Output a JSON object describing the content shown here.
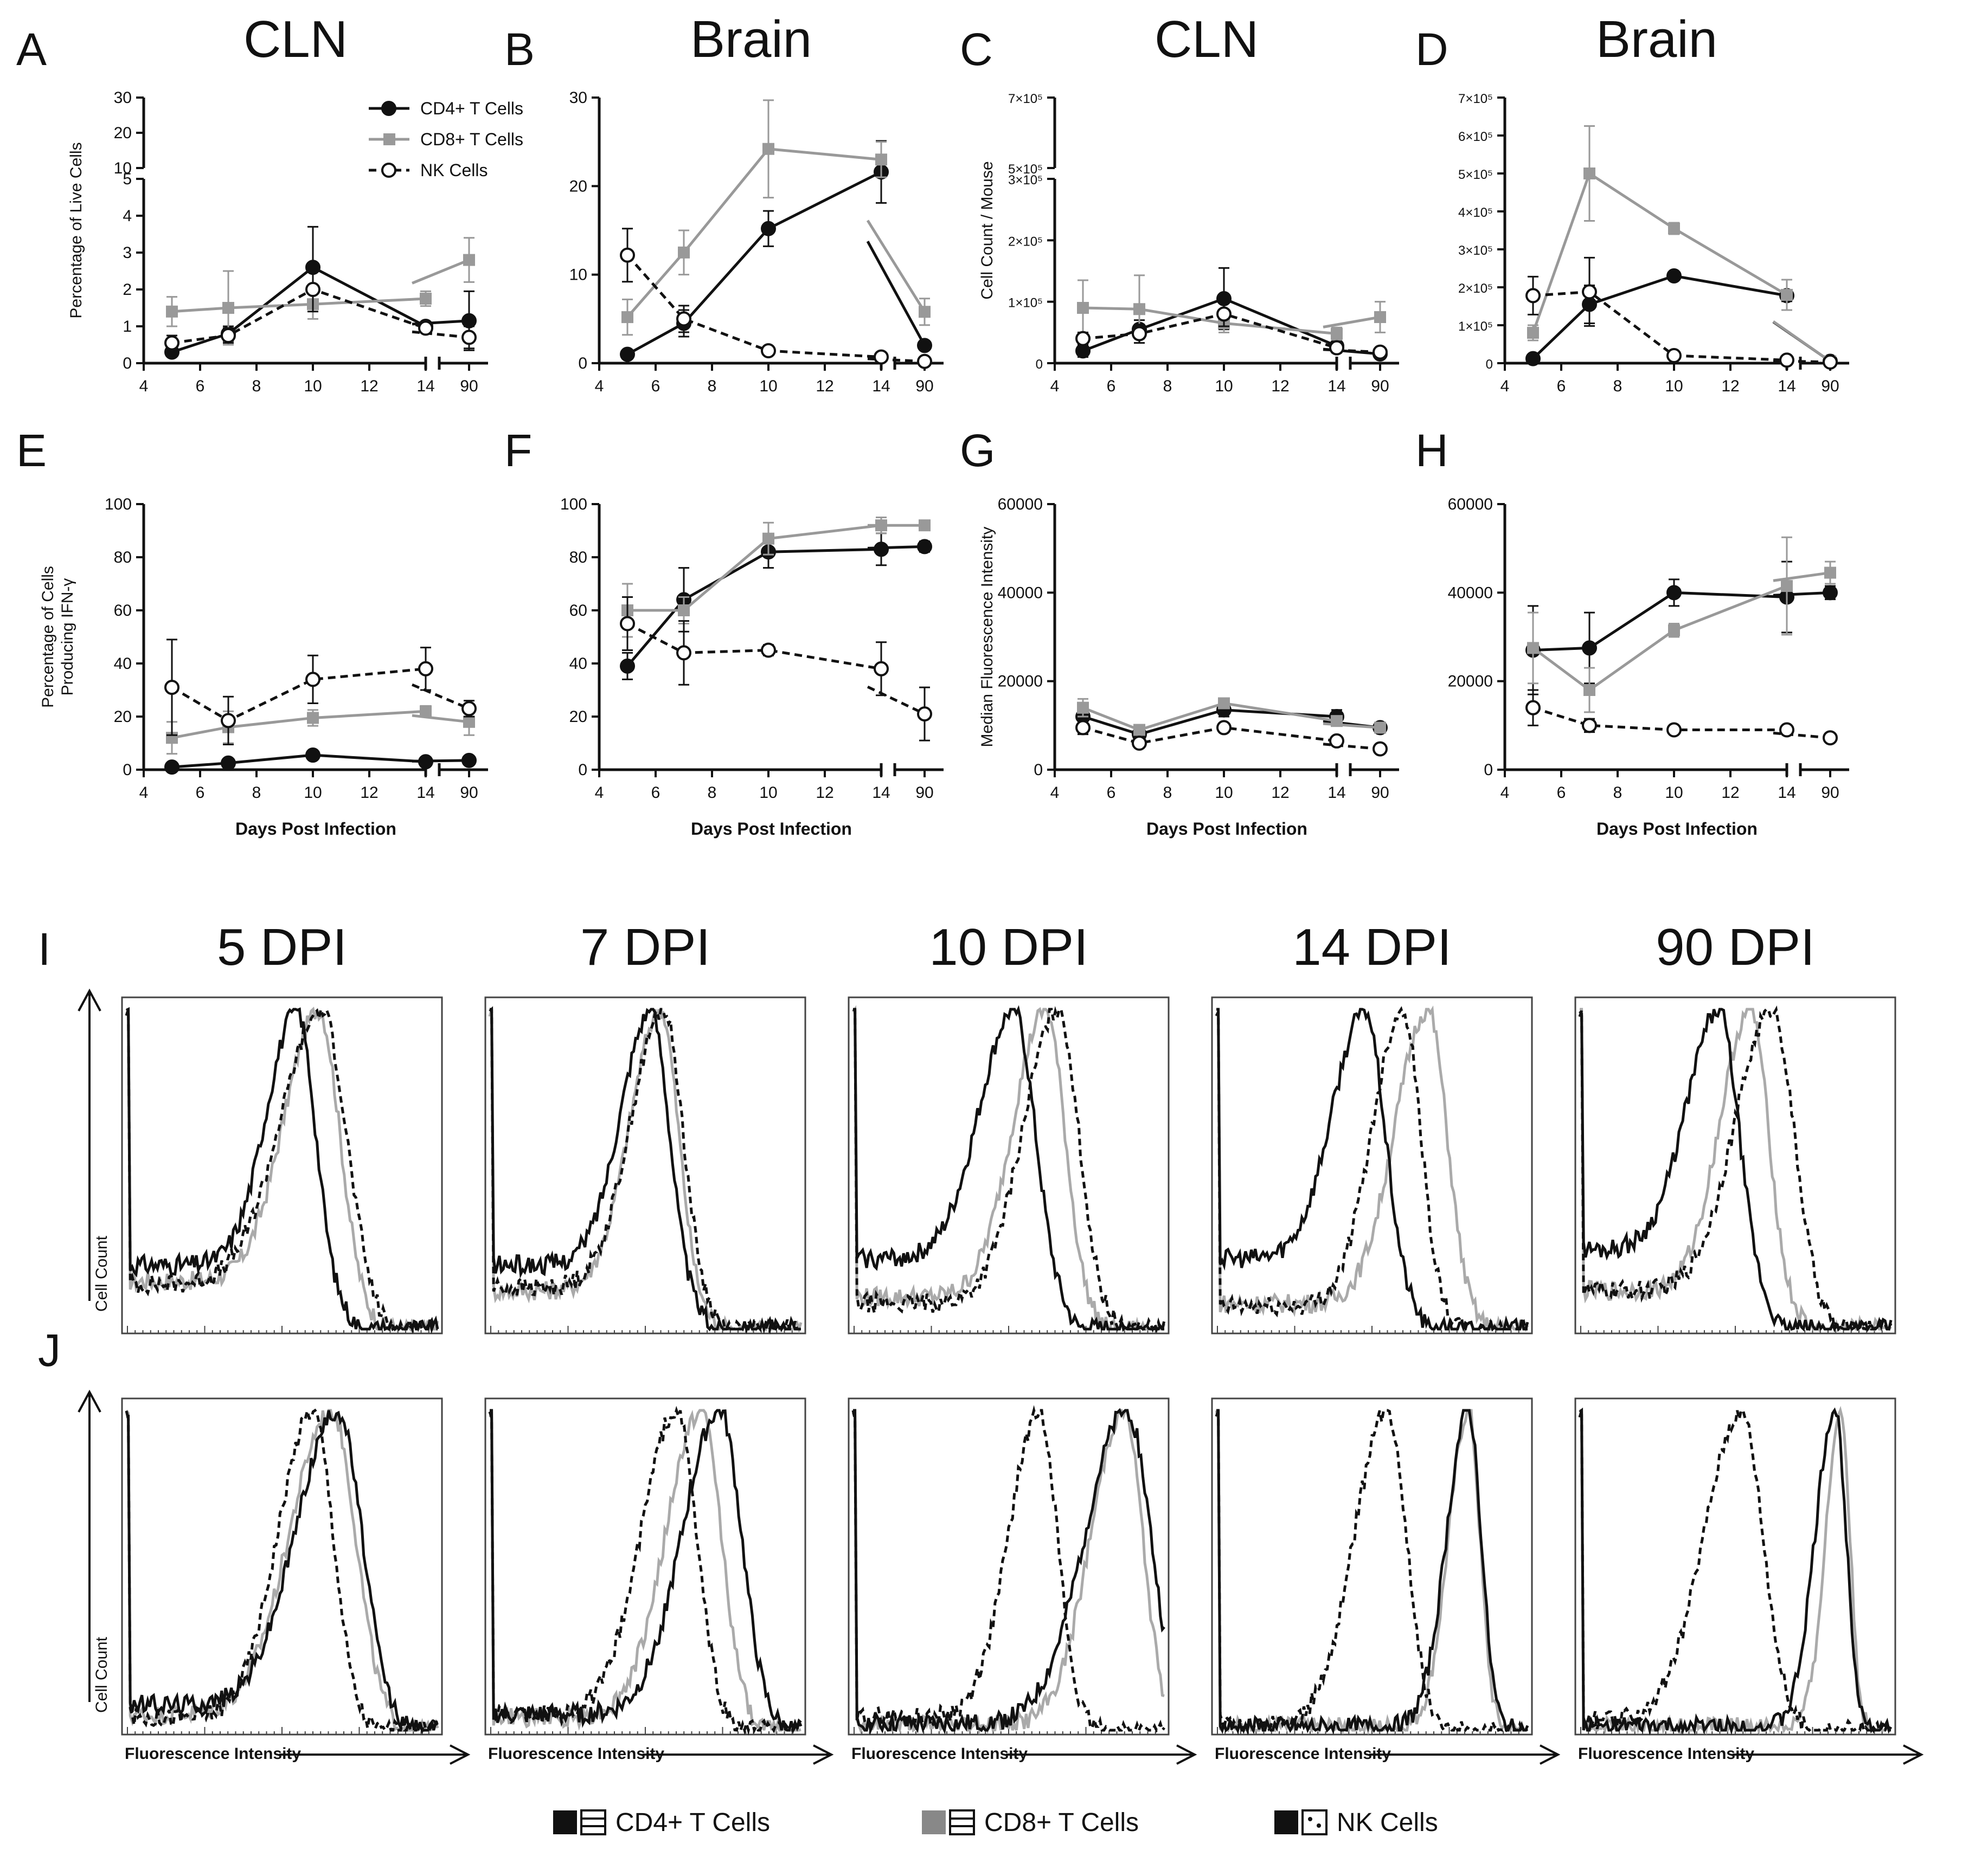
{
  "series_names": {
    "cd4": "CD4+ T Cells",
    "cd8": "CD8+ T Cells",
    "nk": "NK Cells"
  },
  "colors": {
    "cd4": "#111111",
    "cd8": "#999999",
    "nk": "#111111",
    "axis": "#111111"
  },
  "chart_data": [
    {
      "id": "A",
      "type": "line",
      "title": "CLN",
      "ylabel": "Percentage of Live Cells",
      "xlabel": "",
      "x": [
        5,
        7,
        10,
        14
      ],
      "late_x": 90,
      "xticks": [
        4,
        6,
        8,
        10,
        12,
        14
      ],
      "ylim": [
        0,
        30
      ],
      "yticks": [
        "0",
        "1",
        "2",
        "3",
        "4",
        "5",
        "10",
        "20",
        "30"
      ],
      "y_axis_break": "5 to 10",
      "series": [
        {
          "key": "cd4",
          "name": "CD4+ T Cells",
          "values": [
            0.3,
            0.8,
            2.6,
            1.0
          ],
          "late": 1.15,
          "err": [
            0.1,
            0.2,
            1.1,
            0.1
          ],
          "late_err": 0.8
        },
        {
          "key": "cd8",
          "name": "CD8+ T Cells",
          "values": [
            1.4,
            1.5,
            1.6,
            1.75
          ],
          "late": 2.8,
          "err": [
            0.4,
            1.0,
            0.4,
            0.2
          ],
          "late_err": 0.6
        },
        {
          "key": "nk",
          "name": "NK Cells",
          "values": [
            0.55,
            0.75,
            2.0,
            0.95
          ],
          "late": 0.7,
          "err": [
            0.2,
            0.2,
            0.6,
            0.1
          ],
          "late_err": 0.3
        }
      ]
    },
    {
      "id": "B",
      "type": "line",
      "title": "Brain",
      "ylabel": "",
      "xlabel": "",
      "x": [
        5,
        7,
        10,
        14
      ],
      "late_x": 90,
      "xticks": [
        4,
        6,
        8,
        10,
        12,
        14
      ],
      "ylim": [
        0,
        30
      ],
      "yticks": [
        "0",
        "10",
        "20",
        "30"
      ],
      "series": [
        {
          "key": "cd4",
          "name": "CD4+ T Cells",
          "values": [
            1.0,
            4.5,
            15.2,
            21.6
          ],
          "late": 2.0,
          "err": [
            0.2,
            1.5,
            2.0,
            3.5
          ],
          "late_err": 0.5
        },
        {
          "key": "cd8",
          "name": "CD8+ T Cells",
          "values": [
            5.2,
            12.5,
            24.2,
            23.0
          ],
          "late": 5.8,
          "err": [
            2.0,
            2.5,
            5.5,
            2.0
          ],
          "late_err": 1.5
        },
        {
          "key": "nk",
          "name": "NK Cells",
          "values": [
            12.2,
            5.0,
            1.4,
            0.7
          ],
          "late": 0.2,
          "err": [
            3.0,
            1.5,
            0.3,
            0.2
          ],
          "late_err": 0.1
        }
      ]
    },
    {
      "id": "C",
      "type": "line",
      "title": "CLN",
      "ylabel": "Cell Count / Mouse",
      "xlabel": "",
      "x": [
        5,
        7,
        10,
        14
      ],
      "late_x": 90,
      "xticks": [
        4,
        6,
        8,
        10,
        12,
        14
      ],
      "ylim": [
        0,
        700000
      ],
      "yticks": [
        "0",
        "1×10⁵",
        "2×10⁵",
        "3×10⁵",
        "5×10⁵",
        "7×10⁵"
      ],
      "y_axis_break": "3×10⁵ to 5×10⁵",
      "series": [
        {
          "key": "cd4",
          "name": "CD4+ T Cells",
          "values": [
            20000,
            55000,
            105000,
            28000
          ],
          "late": 15000,
          "err": [
            10000,
            15000,
            50000,
            10000
          ],
          "late_err": 5000
        },
        {
          "key": "cd8",
          "name": "CD8+ T Cells",
          "values": [
            90000,
            88000,
            65000,
            48000
          ],
          "late": 75000,
          "err": [
            45000,
            55000,
            15000,
            10000
          ],
          "late_err": 25000
        },
        {
          "key": "nk",
          "name": "NK Cells",
          "values": [
            40000,
            48000,
            80000,
            25000
          ],
          "late": 18000,
          "err": [
            10000,
            15000,
            20000,
            8000
          ],
          "late_err": 5000
        }
      ]
    },
    {
      "id": "D",
      "type": "line",
      "title": "Brain",
      "ylabel": "",
      "xlabel": "",
      "x": [
        5,
        7,
        10,
        14
      ],
      "late_x": 90,
      "xticks": [
        4,
        6,
        8,
        10,
        12,
        14
      ],
      "ylim": [
        0,
        700000
      ],
      "yticks": [
        "0",
        "1×10⁵",
        "2×10⁵",
        "3×10⁵",
        "4×10⁵",
        "5×10⁵",
        "6×10⁵",
        "7×10⁵"
      ],
      "series": [
        {
          "key": "cd4",
          "name": "CD4+ T Cells",
          "values": [
            12000,
            155000,
            230000,
            178000
          ],
          "late": 5000,
          "err": [
            5000,
            50000,
            8000,
            15000
          ],
          "late_err": 3000
        },
        {
          "key": "cd8",
          "name": "CD8+ T Cells",
          "values": [
            80000,
            500000,
            355000,
            180000
          ],
          "late": 5000,
          "err": [
            20000,
            125000,
            15000,
            40000
          ],
          "late_err": 3000
        },
        {
          "key": "nk",
          "name": "NK Cells",
          "values": [
            178000,
            188000,
            20000,
            8000
          ],
          "late": 3000,
          "err": [
            50000,
            90000,
            5000,
            3000
          ],
          "late_err": 2000
        }
      ]
    },
    {
      "id": "E",
      "type": "line",
      "title": "",
      "ylabel": "Percentage of Cells Producing IFN-γ",
      "xlabel": "Days Post Infection",
      "x": [
        5,
        7,
        10,
        14
      ],
      "late_x": 90,
      "xticks": [
        4,
        6,
        8,
        10,
        12,
        14
      ],
      "ylim": [
        0,
        100
      ],
      "yticks": [
        "0",
        "20",
        "40",
        "60",
        "80",
        "100"
      ],
      "series": [
        {
          "key": "cd4",
          "name": "CD4+ T Cells",
          "values": [
            1,
            2.5,
            5.5,
            3
          ],
          "late": 3.5,
          "err": [
            0.5,
            1,
            1.5,
            1
          ],
          "late_err": 1
        },
        {
          "key": "cd8",
          "name": "CD8+ T Cells",
          "values": [
            12,
            16,
            19.5,
            22
          ],
          "late": 18,
          "err": [
            6,
            6,
            3,
            2
          ],
          "late_err": 5
        },
        {
          "key": "nk",
          "name": "NK Cells",
          "values": [
            31,
            18.5,
            34,
            38
          ],
          "late": 23,
          "err": [
            18,
            9,
            9,
            8
          ],
          "late_err": 3
        }
      ]
    },
    {
      "id": "F",
      "type": "line",
      "title": "",
      "ylabel": "",
      "xlabel": "Days Post Infection",
      "x": [
        5,
        7,
        10,
        14
      ],
      "late_x": 90,
      "xticks": [
        4,
        6,
        8,
        10,
        12,
        14
      ],
      "ylim": [
        0,
        100
      ],
      "yticks": [
        "0",
        "20",
        "40",
        "60",
        "80",
        "100"
      ],
      "series": [
        {
          "key": "cd4",
          "name": "CD4+ T Cells",
          "values": [
            39,
            64,
            82,
            83
          ],
          "late": 84,
          "err": [
            5,
            12,
            6,
            6
          ],
          "late_err": 2
        },
        {
          "key": "cd8",
          "name": "CD8+ T Cells",
          "values": [
            60,
            60,
            87,
            92
          ],
          "late": 92,
          "err": [
            10,
            5,
            6,
            3
          ],
          "late_err": 1
        },
        {
          "key": "nk",
          "name": "NK Cells",
          "values": [
            55,
            44,
            45,
            38
          ],
          "late": 21,
          "err": [
            10,
            12,
            2,
            10
          ],
          "late_err": 10
        }
      ]
    },
    {
      "id": "G",
      "type": "line",
      "title": "",
      "ylabel": "Median Fluorescence Intensity",
      "xlabel": "Days Post Infection",
      "x": [
        5,
        7,
        10,
        14
      ],
      "late_x": 90,
      "xticks": [
        4,
        6,
        8,
        10,
        12,
        14
      ],
      "ylim": [
        0,
        60000
      ],
      "yticks": [
        "0",
        "20000",
        "40000",
        "60000"
      ],
      "series": [
        {
          "key": "cd4",
          "name": "CD4+ T Cells",
          "values": [
            12000,
            8000,
            13500,
            12000
          ],
          "late": 9500,
          "err": [
            2000,
            1000,
            1500,
            1500
          ],
          "late_err": 1000
        },
        {
          "key": "cd8",
          "name": "CD8+ T Cells",
          "values": [
            14000,
            9000,
            15000,
            11000
          ],
          "late": 9500,
          "err": [
            2000,
            1000,
            1000,
            1000
          ],
          "late_err": 1000
        },
        {
          "key": "nk",
          "name": "NK Cells",
          "values": [
            9500,
            6000,
            9500,
            6500
          ],
          "late": 4700,
          "err": [
            1500,
            1000,
            1000,
            1000
          ],
          "late_err": 500
        }
      ]
    },
    {
      "id": "H",
      "type": "line",
      "title": "",
      "ylabel": "",
      "xlabel": "Days Post Infection",
      "x": [
        5,
        7,
        10,
        14
      ],
      "late_x": 90,
      "xticks": [
        4,
        6,
        8,
        10,
        12,
        14
      ],
      "ylim": [
        0,
        60000
      ],
      "yticks": [
        "0",
        "20000",
        "40000",
        "60000"
      ],
      "series": [
        {
          "key": "cd4",
          "name": "CD4+ T Cells",
          "values": [
            27000,
            27500,
            40000,
            39000
          ],
          "late": 40000,
          "err": [
            10000,
            8000,
            3000,
            8000
          ],
          "late_err": 1500
        },
        {
          "key": "cd8",
          "name": "CD8+ T Cells",
          "values": [
            27500,
            18000,
            31500,
            41500
          ],
          "late": 44500,
          "err": [
            8000,
            5000,
            1500,
            11000
          ],
          "late_err": 2500
        },
        {
          "key": "nk",
          "name": "NK Cells",
          "values": [
            14000,
            10000,
            9000,
            9000
          ],
          "late": 7200,
          "err": [
            4000,
            1500,
            500,
            500
          ],
          "late_err": 500
        }
      ]
    }
  ],
  "histograms": {
    "row_I_label": "I",
    "row_J_label": "J",
    "y_label": "Cell Count",
    "x_label": "Fluorescence Intensity",
    "columns": [
      {
        "title": "5 DPI",
        "I": {
          "cd4": {
            "peak": 0.55,
            "w": 0.14,
            "base": 0.2
          },
          "cd8": {
            "peak": 0.62,
            "w": 0.16,
            "base": 0.15
          },
          "nk": {
            "peak": 0.63,
            "w": 0.19,
            "base": 0.14
          }
        },
        "J": {
          "cd4": {
            "peak": 0.68,
            "w": 0.19,
            "base": 0.08
          },
          "cd8": {
            "peak": 0.66,
            "w": 0.19,
            "base": 0.05
          },
          "nk": {
            "peak": 0.6,
            "w": 0.16,
            "base": 0.04
          }
        }
      },
      {
        "title": "7 DPI",
        "I": {
          "cd4": {
            "peak": 0.52,
            "w": 0.14,
            "base": 0.2
          },
          "cd8": {
            "peak": 0.55,
            "w": 0.14,
            "base": 0.12
          },
          "nk": {
            "peak": 0.56,
            "w": 0.15,
            "base": 0.13
          }
        },
        "J": {
          "cd4": {
            "peak": 0.74,
            "w": 0.17,
            "base": 0.05
          },
          "cd8": {
            "peak": 0.68,
            "w": 0.16,
            "base": 0.04
          },
          "nk": {
            "peak": 0.6,
            "w": 0.16,
            "base": 0.05
          }
        }
      },
      {
        "title": "10 DPI",
        "I": {
          "cd4": {
            "peak": 0.52,
            "w": 0.16,
            "base": 0.22
          },
          "cd8": {
            "peak": 0.62,
            "w": 0.15,
            "base": 0.1
          },
          "nk": {
            "peak": 0.66,
            "w": 0.16,
            "base": 0.08
          }
        },
        "J": {
          "cd4": {
            "peak": 0.88,
            "w": 0.19,
            "base": 0.02
          },
          "cd8": {
            "peak": 0.87,
            "w": 0.15,
            "base": 0.02
          },
          "nk": {
            "peak": 0.6,
            "w": 0.14,
            "base": 0.04
          }
        }
      },
      {
        "title": "14 DPI",
        "I": {
          "cd4": {
            "peak": 0.48,
            "w": 0.15,
            "base": 0.22
          },
          "cd8": {
            "peak": 0.68,
            "w": 0.15,
            "base": 0.08
          },
          "nk": {
            "peak": 0.6,
            "w": 0.14,
            "base": 0.07
          }
        },
        "J": {
          "cd4": {
            "peak": 0.81,
            "w": 0.1,
            "base": 0.01
          },
          "cd8": {
            "peak": 0.81,
            "w": 0.09,
            "base": 0.01
          },
          "nk": {
            "peak": 0.55,
            "w": 0.15,
            "base": 0.02
          }
        }
      },
      {
        "title": "90 DPI",
        "I": {
          "cd4": {
            "peak": 0.45,
            "w": 0.15,
            "base": 0.25
          },
          "cd8": {
            "peak": 0.55,
            "w": 0.14,
            "base": 0.12
          },
          "nk": {
            "peak": 0.62,
            "w": 0.17,
            "base": 0.12
          }
        },
        "J": {
          "cd4": {
            "peak": 0.82,
            "w": 0.09,
            "base": 0.01
          },
          "cd8": {
            "peak": 0.84,
            "w": 0.07,
            "base": 0.01
          },
          "nk": {
            "peak": 0.52,
            "w": 0.17,
            "base": 0.03
          }
        }
      }
    ]
  },
  "bottom_legend": {
    "cd4": "CD4+ T Cells",
    "cd8": "CD8+ T Cells",
    "nk": "NK Cells"
  }
}
